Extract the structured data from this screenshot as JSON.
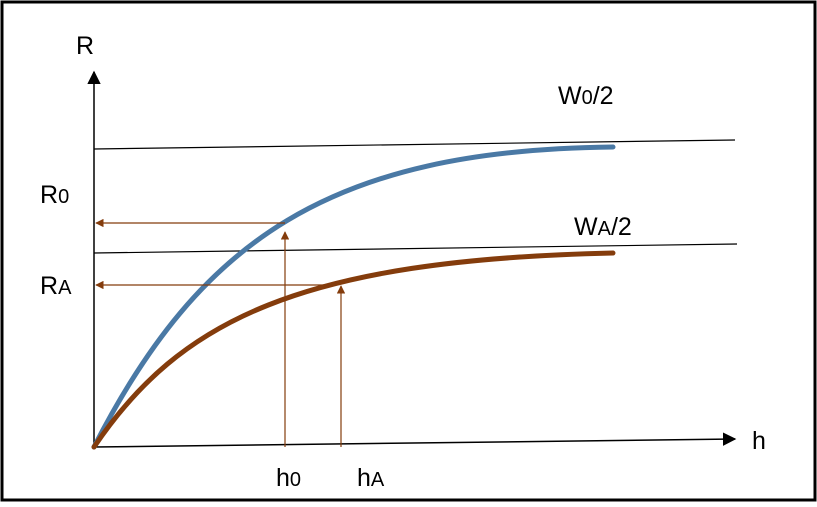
{
  "axes": {
    "y_label": "R",
    "x_label": "h"
  },
  "labels": {
    "w0_main": "W",
    "w0_sub": "0",
    "w0_suffix": "/2",
    "wa_main": "W",
    "wa_sub": "A",
    "wa_suffix": "/2",
    "r0_main": "R",
    "r0_sub": "0",
    "ra_main": "R",
    "ra_sub": "A",
    "h0_main": "h",
    "h0_sub": "0",
    "ha_main": "h",
    "ha_sub": "A"
  },
  "colors": {
    "curve_0": "#4a79a5",
    "curve_a": "#843c0c",
    "arrows": "#843c0c",
    "axes": "#000000",
    "frame": "#000000"
  }
}
